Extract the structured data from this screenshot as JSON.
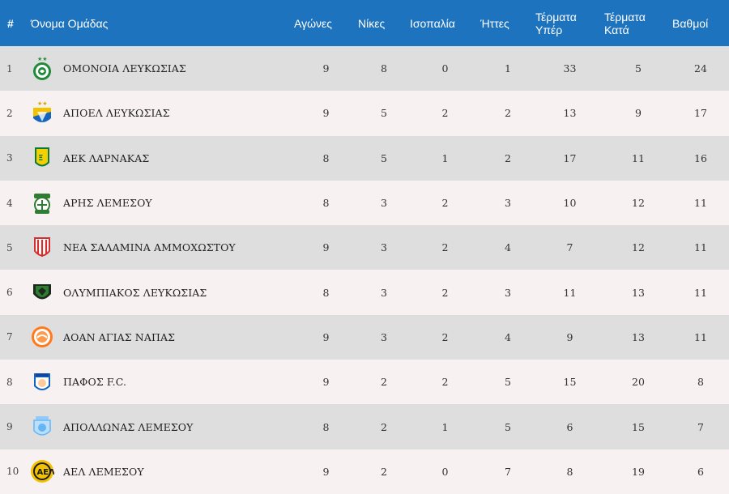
{
  "headers": {
    "rank": "#",
    "team": "Όνομα Ομάδας",
    "played": "Αγώνες",
    "wins": "Νίκες",
    "draws": "Ισοπαλία",
    "losses": "Ήττες",
    "goals_for_1": "Τέρματα",
    "goals_for_2": "Υπέρ",
    "goals_against_1": "Τέρματα",
    "goals_against_2": "Κατά",
    "points": "Βαθμοί"
  },
  "rows": [
    {
      "rank": "1",
      "team": "ΟΜΟΝΟΙΑ ΛΕΥΚΩΣΙΑΣ",
      "logo": "omonoia-logo-icon",
      "played": "9",
      "wins": "8",
      "draws": "0",
      "losses": "1",
      "gf": "33",
      "ga": "5",
      "pts": "24"
    },
    {
      "rank": "2",
      "team": "ΑΠΟΕΛ ΛΕΥΚΩΣΙΑΣ",
      "logo": "apoel-logo-icon",
      "played": "9",
      "wins": "5",
      "draws": "2",
      "losses": "2",
      "gf": "13",
      "ga": "9",
      "pts": "17"
    },
    {
      "rank": "3",
      "team": "ΑΕΚ ΛΑΡΝΑΚΑΣ",
      "logo": "aek-larnaca-logo-icon",
      "played": "8",
      "wins": "5",
      "draws": "1",
      "losses": "2",
      "gf": "17",
      "ga": "11",
      "pts": "16"
    },
    {
      "rank": "4",
      "team": "ΑΡΗΣ ΛΕΜΕΣΟΥ",
      "logo": "aris-logo-icon",
      "played": "8",
      "wins": "3",
      "draws": "2",
      "losses": "3",
      "gf": "10",
      "ga": "12",
      "pts": "11"
    },
    {
      "rank": "5",
      "team": "ΝΕΑ ΣΑΛΑΜΙΝΑ ΑΜΜΟΧΩΣΤΟΥ",
      "logo": "nea-salamina-logo-icon",
      "played": "9",
      "wins": "3",
      "draws": "2",
      "losses": "4",
      "gf": "7",
      "ga": "12",
      "pts": "11"
    },
    {
      "rank": "6",
      "team": "ΟΛΥΜΠΙΑΚΟΣ ΛΕΥΚΩΣΙΑΣ",
      "logo": "olympiakos-logo-icon",
      "played": "8",
      "wins": "3",
      "draws": "2",
      "losses": "3",
      "gf": "11",
      "ga": "13",
      "pts": "11"
    },
    {
      "rank": "7",
      "team": "ΑΟΑΝ ΑΓΙΑΣ ΝΑΠΑΣ",
      "logo": "aoan-logo-icon",
      "played": "9",
      "wins": "3",
      "draws": "2",
      "losses": "4",
      "gf": "9",
      "ga": "13",
      "pts": "11"
    },
    {
      "rank": "8",
      "team": "ΠΑΦΟΣ F.C.",
      "logo": "pafos-logo-icon",
      "played": "9",
      "wins": "2",
      "draws": "2",
      "losses": "5",
      "gf": "15",
      "ga": "20",
      "pts": "8"
    },
    {
      "rank": "9",
      "team": "ΑΠΟΛΛΩΝΑΣ ΛΕΜΕΣΟΥ",
      "logo": "apollon-logo-icon",
      "played": "8",
      "wins": "2",
      "draws": "1",
      "losses": "5",
      "gf": "6",
      "ga": "15",
      "pts": "7"
    },
    {
      "rank": "10",
      "team": "ΑΕΛ ΛΕΜΕΣΟΥ",
      "logo": "ael-logo-icon",
      "played": "9",
      "wins": "2",
      "draws": "0",
      "losses": "7",
      "gf": "8",
      "ga": "19",
      "pts": "6"
    }
  ],
  "colors": {
    "header_bg": "#1e73be",
    "row_odd": "#dedede",
    "row_even": "#f8f1f1"
  }
}
